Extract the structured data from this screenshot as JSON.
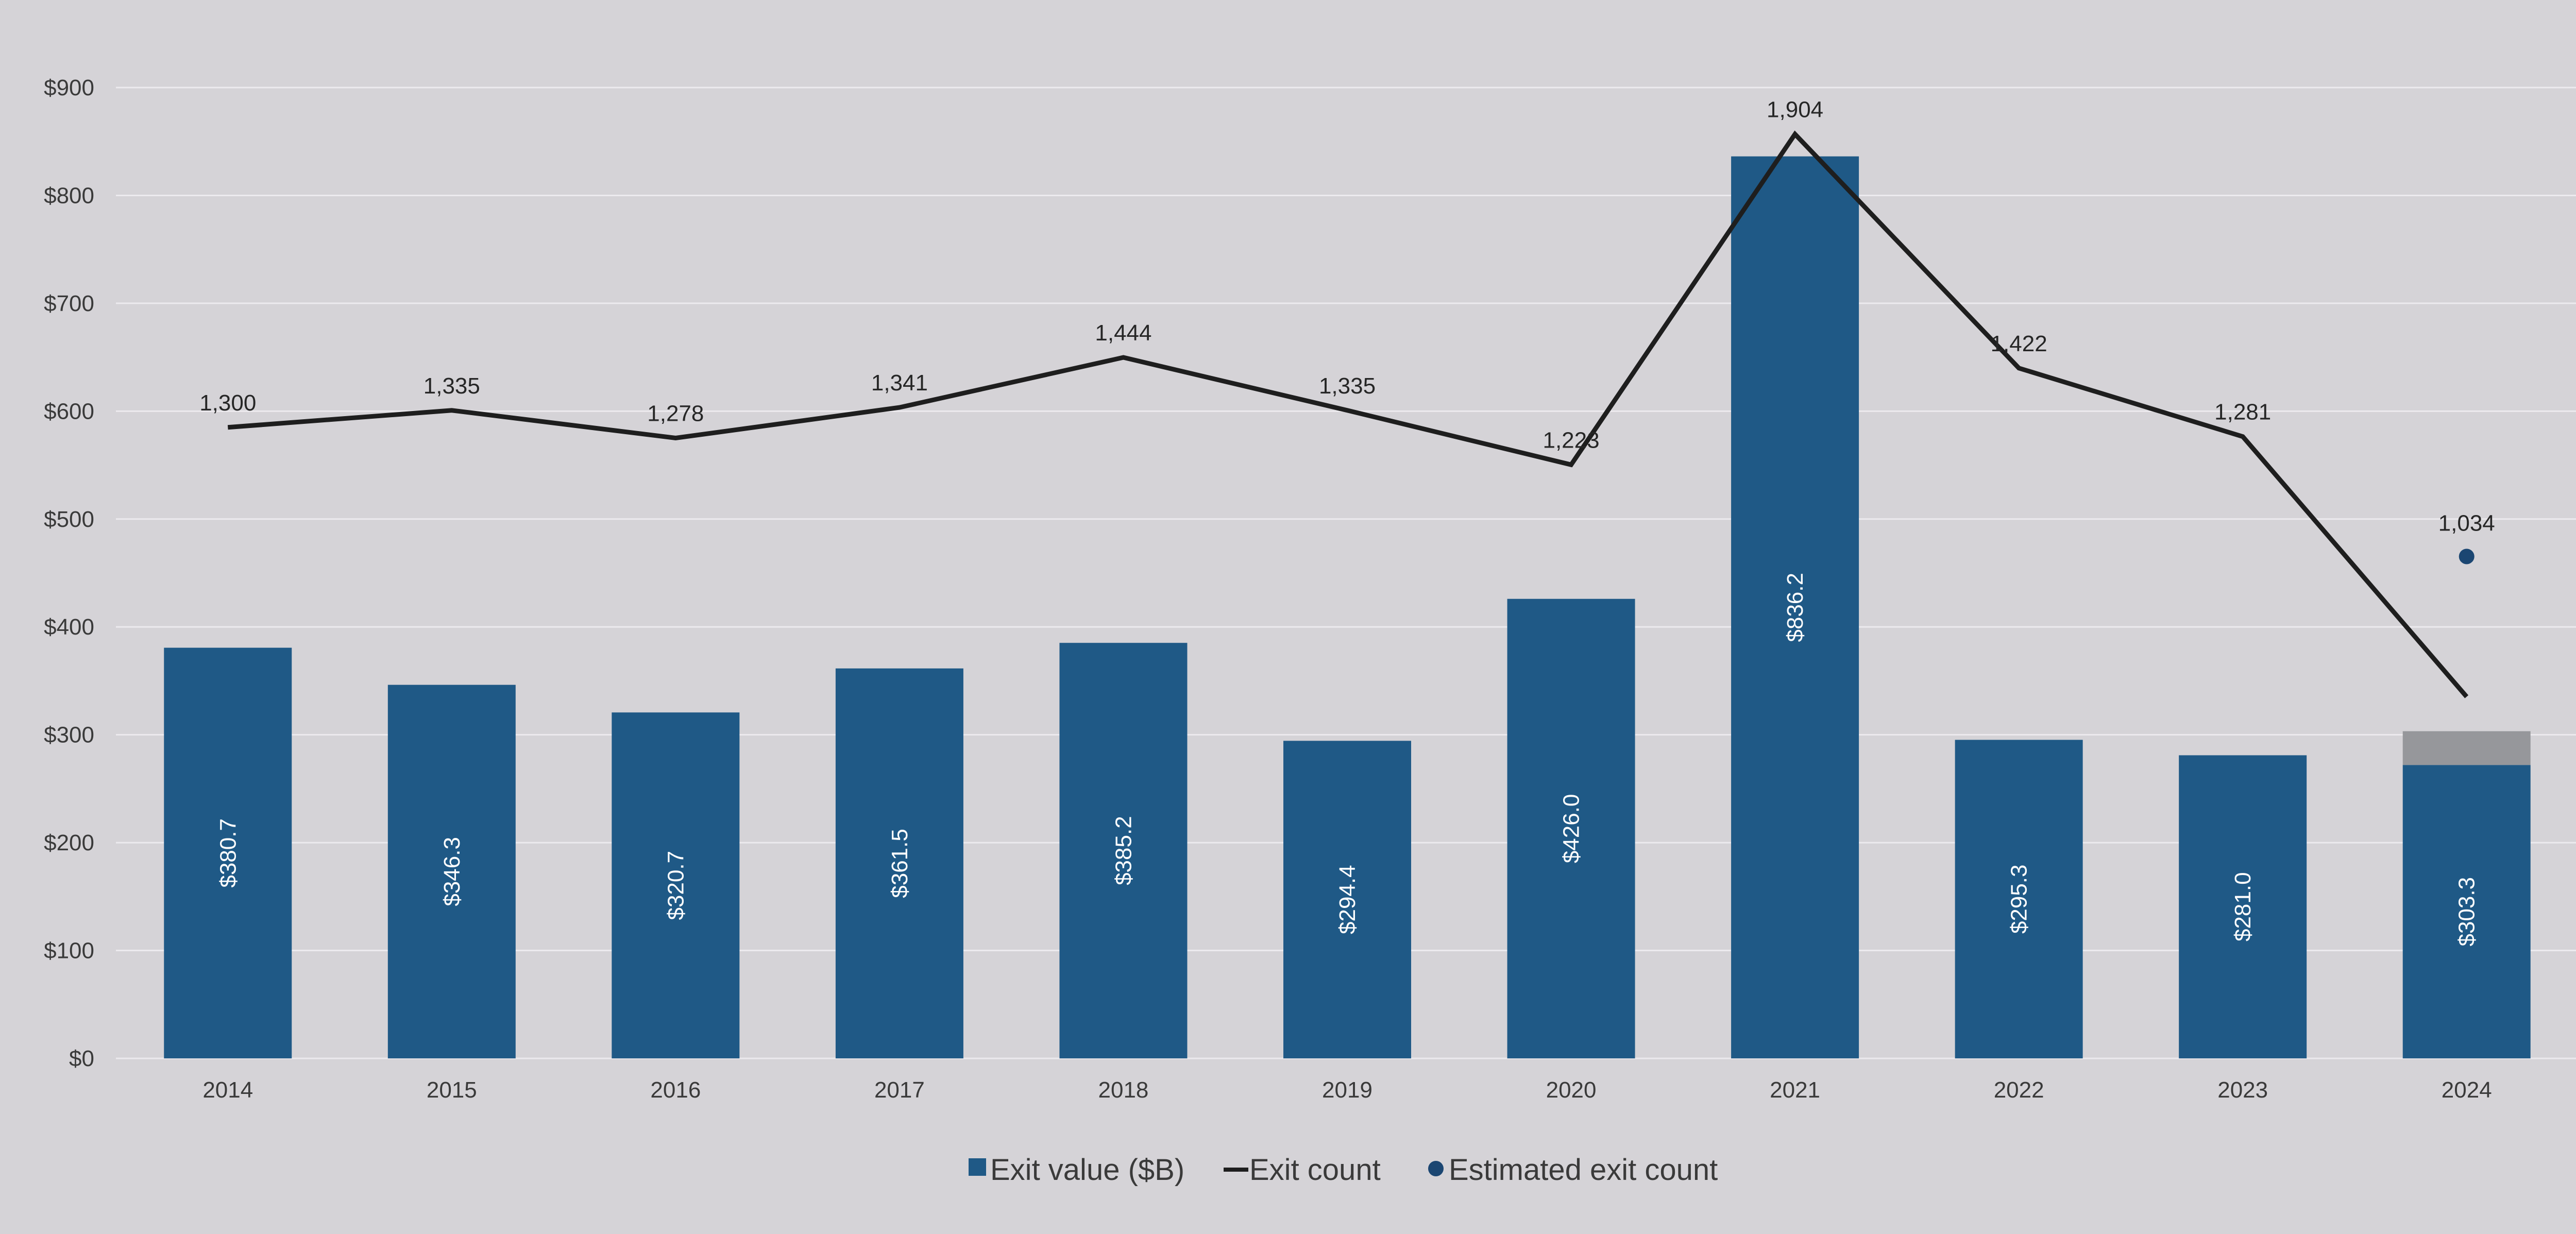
{
  "chart_data": {
    "type": "bar",
    "categories": [
      "2014",
      "2015",
      "2016",
      "2017",
      "2018",
      "2019",
      "2020",
      "2021",
      "2022",
      "2023",
      "2024"
    ],
    "series": [
      {
        "name": "Exit value ($B)",
        "type": "bar",
        "axis": "left",
        "values": [
          380.7,
          346.3,
          320.7,
          361.5,
          385.2,
          294.4,
          426.0,
          836.2,
          295.3,
          281.0,
          303.3
        ],
        "labels": [
          "$380.7",
          "$346.3",
          "$320.7",
          "$361.5",
          "$385.2",
          "$294.4",
          "$426.0",
          "$836.2",
          "$295.3",
          "$281.0",
          "$303.3"
        ]
      },
      {
        "name": "Exit count",
        "type": "line",
        "axis": "right",
        "values": [
          1300,
          1335,
          1278,
          1341,
          1444,
          1335,
          1223,
          1904,
          1422,
          1281,
          745
        ],
        "labels": [
          "1,300",
          "1,335",
          "1,278",
          "1,341",
          "1,444",
          "1,335",
          "1,223",
          "1,904",
          "1,422",
          "1,281",
          ""
        ]
      },
      {
        "name": "Estimated exit count",
        "type": "scatter",
        "axis": "right",
        "x": "2024",
        "values": [
          1034
        ],
        "labels": [
          "1,034"
        ]
      }
    ],
    "estimated_segment_2024": {
      "category": "2024",
      "from": 272,
      "to": 303.3,
      "color": "#96979b"
    },
    "y_left": {
      "ylim": [
        0,
        900
      ],
      "ticks": [
        0,
        100,
        200,
        300,
        400,
        500,
        600,
        700,
        800,
        900
      ],
      "tick_labels": [
        "$0",
        "$100",
        "$200",
        "$300",
        "$400",
        "$500",
        "$600",
        "$700",
        "$800",
        "$900"
      ]
    },
    "y_right": {
      "ylim": [
        0,
        2000
      ],
      "ticks": [
        0,
        200,
        400,
        600,
        800,
        1000,
        1200,
        1400,
        1600,
        1800,
        2000
      ],
      "tick_labels": [
        "0",
        "200",
        "400",
        "600",
        "800",
        "1,000",
        "1,200",
        "1,400",
        "1,600",
        "1,800",
        "2,000"
      ]
    },
    "grid": true,
    "legend_position": "bottom-center",
    "colors": {
      "background": "#d5d3d7",
      "bar": "#1f5986",
      "estimated_bar": "#96979b",
      "line": "#1e1e1e",
      "marker": "#1b4672",
      "grid": "#eceaee"
    }
  }
}
